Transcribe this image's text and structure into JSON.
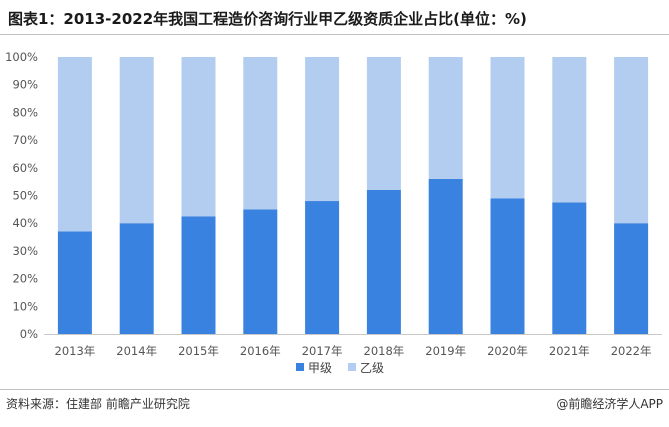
{
  "title": "图表1：2013-2022年我国工程造价咨询行业甲乙级资质企业占比(单位：%)",
  "footer": {
    "source": "资料来源：住建部 前瞻产业研究院",
    "credit": "@前瞻经济学人APP"
  },
  "colors": {
    "series_a": "#3a82e0",
    "series_b": "#b3cdf0"
  },
  "chart_data": {
    "type": "bar",
    "stacked": true,
    "categories": [
      "2013年",
      "2014年",
      "2015年",
      "2016年",
      "2017年",
      "2018年",
      "2019年",
      "2020年",
      "2021年",
      "2022年"
    ],
    "series": [
      {
        "name": "甲级",
        "values": [
          37,
          40,
          42.5,
          45,
          48,
          52,
          56,
          49,
          47.5,
          40
        ]
      },
      {
        "name": "乙级",
        "values": [
          63,
          60,
          57.5,
          55,
          52,
          48,
          44,
          51,
          52.5,
          60
        ]
      }
    ],
    "ylim": [
      0,
      100
    ],
    "yticks": [
      "0%",
      "10%",
      "20%",
      "30%",
      "40%",
      "50%",
      "60%",
      "70%",
      "80%",
      "90%",
      "100%"
    ],
    "legend_position": "bottom",
    "grid": false
  }
}
